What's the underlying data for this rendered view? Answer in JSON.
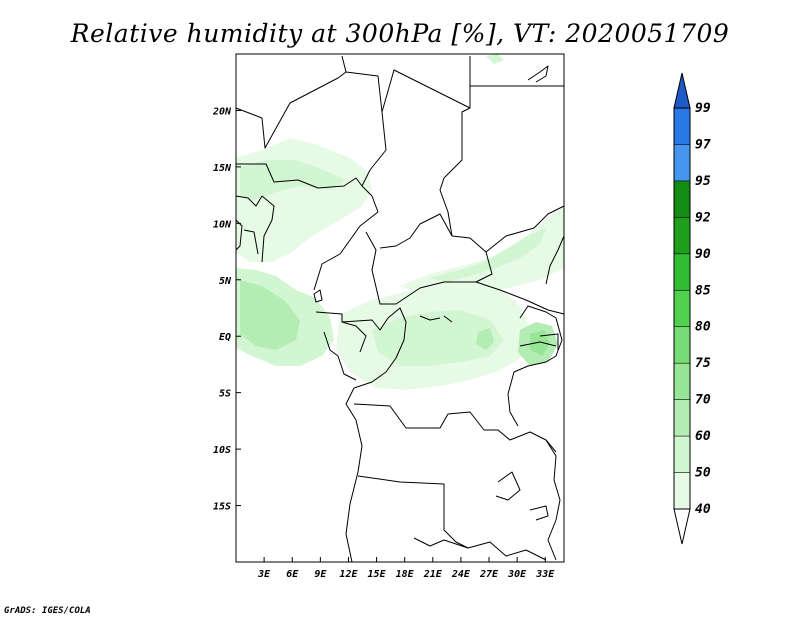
{
  "title": "Relative humidity at 300hPa [%], VT: 2020051709",
  "credit": "GrADS: IGES/COLA",
  "map": {
    "projection": "latlon",
    "lon_range": [
      0,
      35
    ],
    "lat_range": [
      -20,
      25
    ],
    "lon_ticks": [
      3,
      6,
      9,
      12,
      15,
      18,
      21,
      24,
      27,
      30,
      33
    ],
    "lon_labels": [
      "3E",
      "6E",
      "9E",
      "12E",
      "15E",
      "18E",
      "21E",
      "24E",
      "27E",
      "30E",
      "33E"
    ],
    "lat_ticks": [
      20,
      15,
      10,
      5,
      0,
      -5,
      -10,
      -15
    ],
    "lat_labels": [
      "20N",
      "15N",
      "10N",
      "5N",
      "EQ",
      "5S",
      "10S",
      "15S"
    ]
  },
  "colorbar": {
    "levels": [
      "40",
      "50",
      "60",
      "70",
      "75",
      "80",
      "85",
      "90",
      "92",
      "95",
      "97",
      "99"
    ],
    "colors": [
      "#ffffff",
      "#e6fae6",
      "#d2f5d2",
      "#b4edb4",
      "#96e696",
      "#78dc78",
      "#50d250",
      "#32be32",
      "#1ea01e",
      "#148c14",
      "#4696f0",
      "#2878e6",
      "#1e5ac8"
    ]
  },
  "chart_data": {
    "type": "heatmap",
    "title": "Relative humidity at 300hPa [%], VT: 2020051709",
    "variable": "Relative humidity at 300hPa",
    "units": "%",
    "valid_time": "2020051709",
    "xlim": [
      0,
      35
    ],
    "ylim": [
      -20,
      25
    ],
    "levels": [
      40,
      50,
      60,
      70,
      75,
      80,
      85,
      90,
      92,
      95,
      97,
      99
    ],
    "regions": [
      {
        "lon": [
          1,
          15
        ],
        "lat": [
          9,
          16
        ],
        "rh_class": "40-50"
      },
      {
        "lon": [
          0,
          10
        ],
        "lat": [
          -3,
          5
        ],
        "rh_class": "50-60"
      },
      {
        "lon": [
          12,
          31
        ],
        "lat": [
          -5,
          5
        ],
        "rh_class": "40-50"
      },
      {
        "lon": [
          22,
          34
        ],
        "lat": [
          5,
          11
        ],
        "rh_class": "40-50"
      },
      {
        "lon": [
          29,
          32
        ],
        "lat": [
          -2,
          1
        ],
        "rh_class": "60-70"
      },
      {
        "lon": [
          26,
          27
        ],
        "lat": [
          -1,
          0
        ],
        "rh_class": "60-70"
      }
    ]
  }
}
